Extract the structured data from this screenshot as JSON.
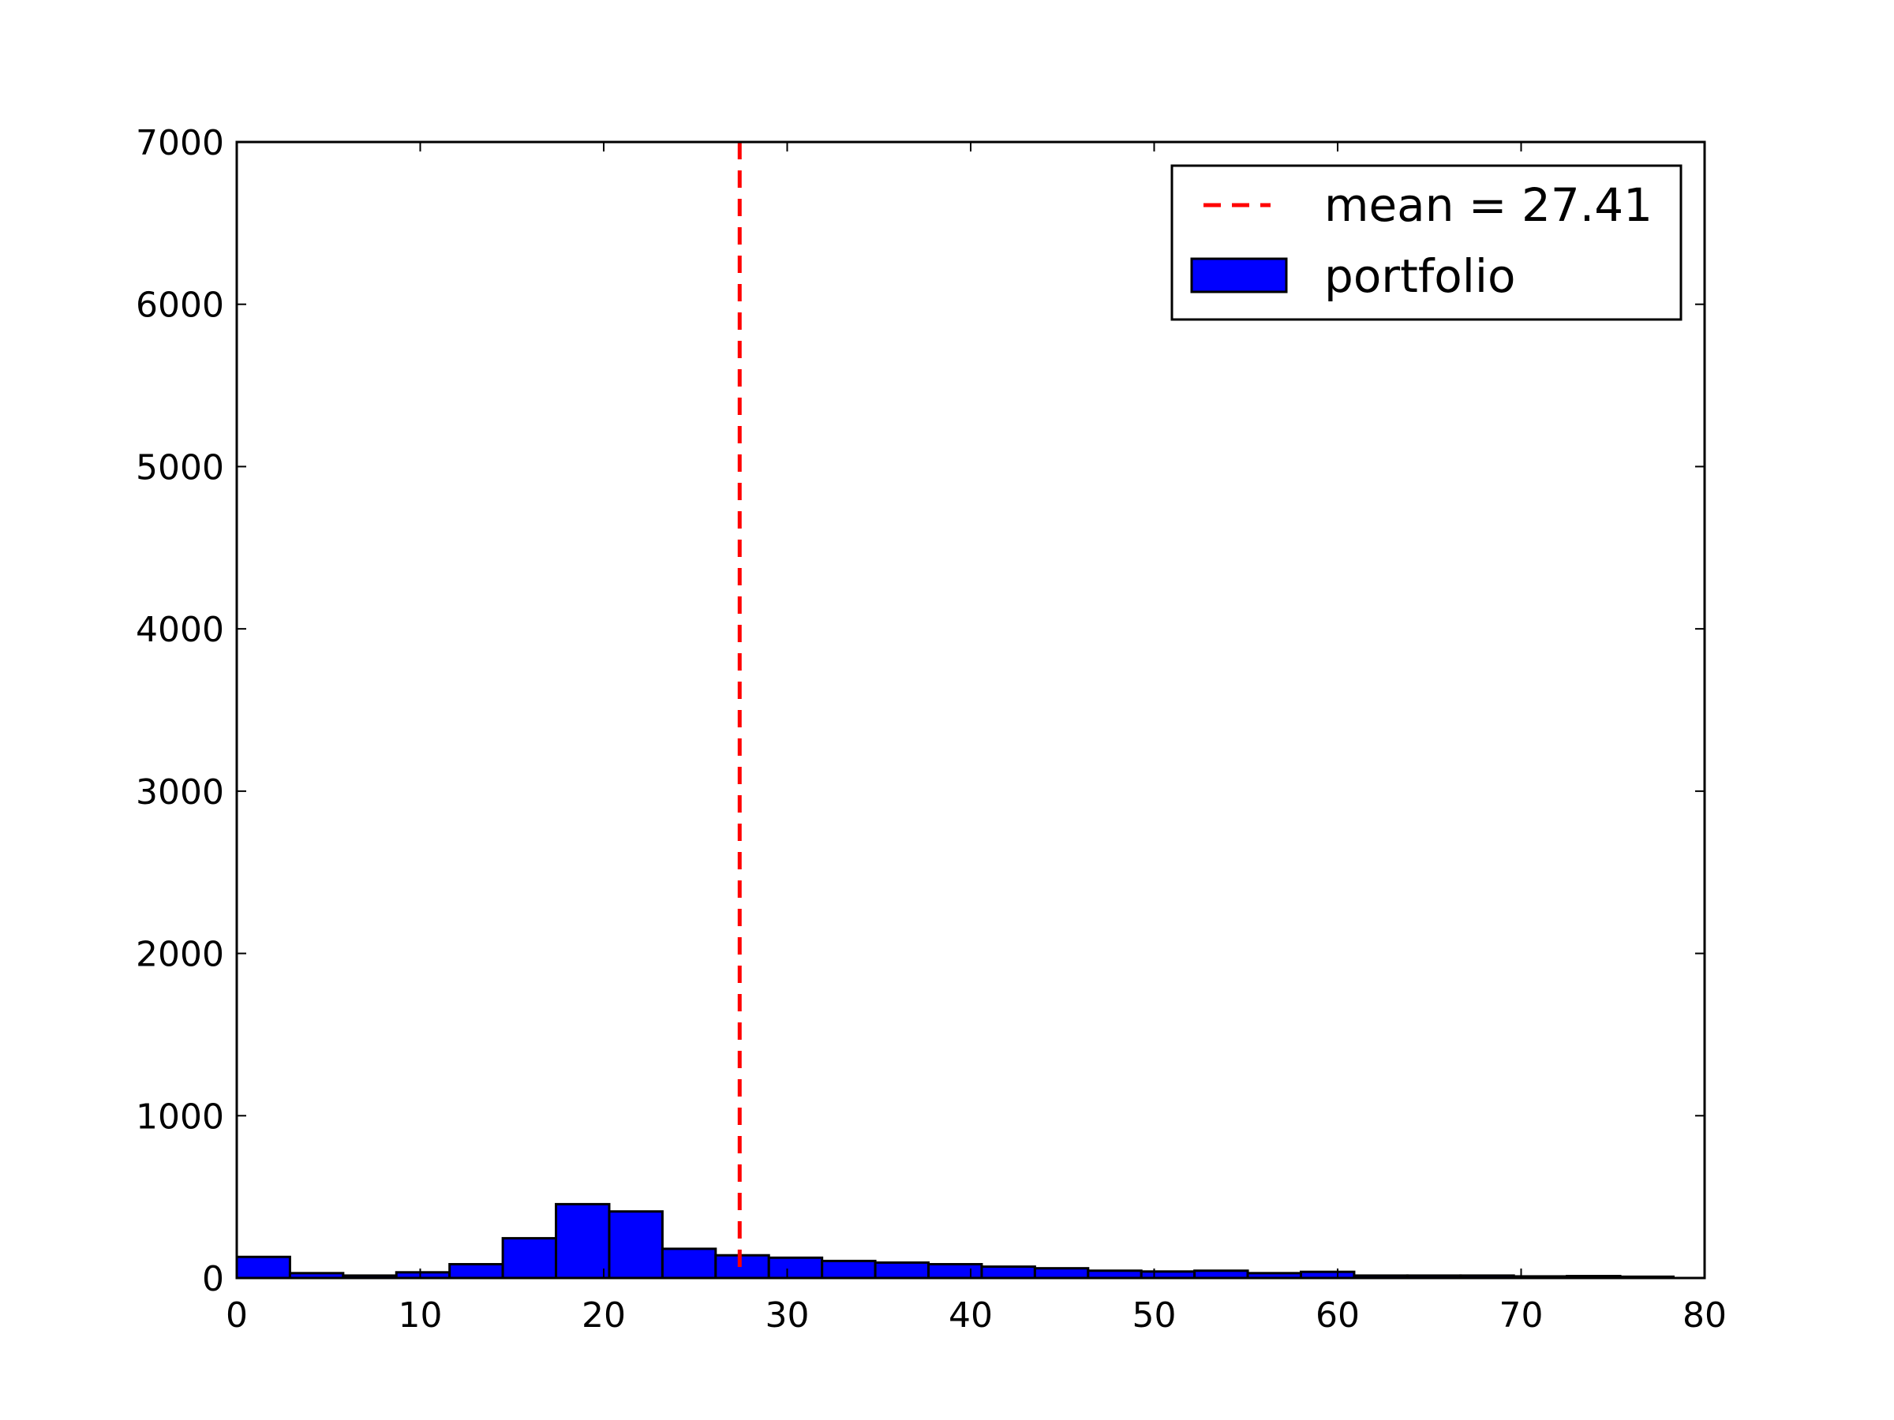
{
  "chart_data": {
    "type": "bar",
    "xlim": [
      0,
      80
    ],
    "ylim": [
      0,
      7000
    ],
    "x_ticks": [
      0,
      10,
      20,
      30,
      40,
      50,
      60,
      70,
      80
    ],
    "y_ticks": [
      0,
      1000,
      2000,
      3000,
      4000,
      5000,
      6000,
      7000
    ],
    "bin_width": 2.9,
    "bins": [
      {
        "x0": 0.0,
        "count": 130
      },
      {
        "x0": 2.9,
        "count": 30
      },
      {
        "x0": 5.8,
        "count": 15
      },
      {
        "x0": 8.7,
        "count": 35
      },
      {
        "x0": 11.6,
        "count": 85
      },
      {
        "x0": 14.5,
        "count": 245
      },
      {
        "x0": 17.4,
        "count": 455
      },
      {
        "x0": 20.3,
        "count": 410
      },
      {
        "x0": 23.2,
        "count": 180
      },
      {
        "x0": 26.1,
        "count": 140
      },
      {
        "x0": 29.0,
        "count": 125
      },
      {
        "x0": 31.9,
        "count": 105
      },
      {
        "x0": 34.8,
        "count": 95
      },
      {
        "x0": 37.7,
        "count": 85
      },
      {
        "x0": 40.6,
        "count": 70
      },
      {
        "x0": 43.5,
        "count": 60
      },
      {
        "x0": 46.4,
        "count": 45
      },
      {
        "x0": 49.3,
        "count": 40
      },
      {
        "x0": 52.2,
        "count": 45
      },
      {
        "x0": 55.1,
        "count": 30
      },
      {
        "x0": 58.0,
        "count": 38
      },
      {
        "x0": 60.9,
        "count": 15
      },
      {
        "x0": 63.8,
        "count": 15
      },
      {
        "x0": 66.7,
        "count": 15
      },
      {
        "x0": 69.6,
        "count": 10
      },
      {
        "x0": 72.5,
        "count": 12
      },
      {
        "x0": 75.4,
        "count": 8
      }
    ],
    "mean_line": {
      "x": 27.41,
      "label": "mean = 27.41",
      "color": "#ff0000",
      "style": "dashed"
    },
    "series": [
      {
        "name": "portfolio",
        "color": "#0000ff",
        "edge_color": "#000000"
      }
    ],
    "legend": {
      "placement": "top-right",
      "entries": [
        "mean = 27.41",
        "portfolio"
      ]
    },
    "grid": false
  }
}
